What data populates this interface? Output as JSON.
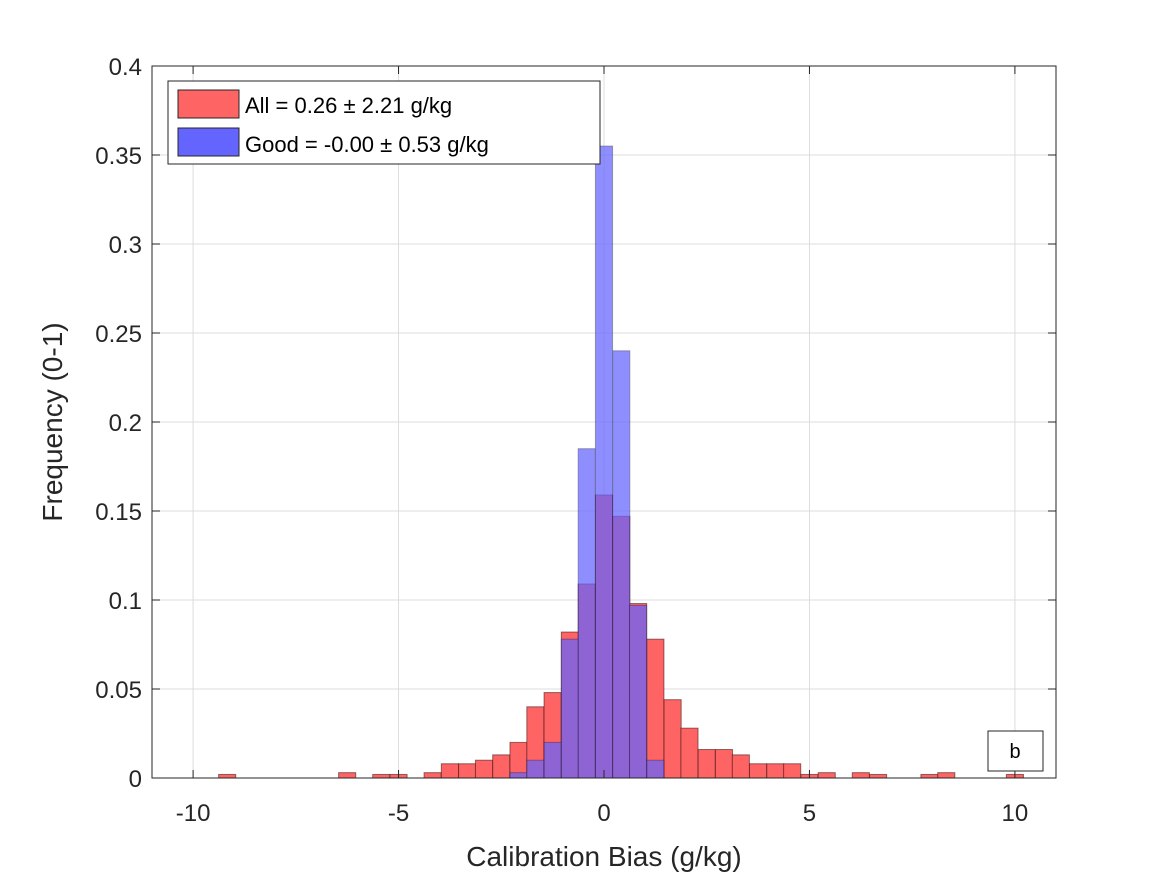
{
  "chart_data": {
    "type": "bar",
    "subtype": "overlaid-histogram",
    "xlabel": "Calibration Bias (g/kg)",
    "ylabel": "Frequency (0-1)",
    "xlim": [
      -11,
      11
    ],
    "ylim": [
      0,
      0.4
    ],
    "xticks": [
      -10,
      -5,
      0,
      5,
      10
    ],
    "xtick_labels": [
      "-10",
      "-5",
      "0",
      "5",
      "10"
    ],
    "yticks": [
      0,
      0.05,
      0.1,
      0.15,
      0.2,
      0.25,
      0.3,
      0.35,
      0.4
    ],
    "ytick_labels": [
      "0",
      "0.05",
      "0.1",
      "0.15",
      "0.2",
      "0.25",
      "0.3",
      "0.35",
      "0.4"
    ],
    "grid": true,
    "legend_position": "top-left",
    "panel_label": "b",
    "bin_width": 0.4167,
    "series": [
      {
        "name": "All = 0.26 ± 2.21 g/kg",
        "color": "#ff6464",
        "bins": [
          {
            "x": -9.17,
            "value": 0.002
          },
          {
            "x": -6.25,
            "value": 0.003
          },
          {
            "x": -5.42,
            "value": 0.002
          },
          {
            "x": -5.0,
            "value": 0.002
          },
          {
            "x": -4.17,
            "value": 0.003
          },
          {
            "x": -3.75,
            "value": 0.008
          },
          {
            "x": -3.33,
            "value": 0.008
          },
          {
            "x": -2.92,
            "value": 0.01
          },
          {
            "x": -2.5,
            "value": 0.013
          },
          {
            "x": -2.08,
            "value": 0.02
          },
          {
            "x": -1.67,
            "value": 0.04
          },
          {
            "x": -1.25,
            "value": 0.048
          },
          {
            "x": -0.83,
            "value": 0.082
          },
          {
            "x": -0.42,
            "value": 0.109
          },
          {
            "x": 0.0,
            "value": 0.159
          },
          {
            "x": 0.42,
            "value": 0.147
          },
          {
            "x": 0.83,
            "value": 0.098
          },
          {
            "x": 1.25,
            "value": 0.078
          },
          {
            "x": 1.67,
            "value": 0.044
          },
          {
            "x": 2.08,
            "value": 0.028
          },
          {
            "x": 2.5,
            "value": 0.016
          },
          {
            "x": 2.92,
            "value": 0.016
          },
          {
            "x": 3.33,
            "value": 0.013
          },
          {
            "x": 3.75,
            "value": 0.008
          },
          {
            "x": 4.17,
            "value": 0.008
          },
          {
            "x": 4.58,
            "value": 0.008
          },
          {
            "x": 5.0,
            "value": 0.002
          },
          {
            "x": 5.42,
            "value": 0.003
          },
          {
            "x": 6.25,
            "value": 0.003
          },
          {
            "x": 6.67,
            "value": 0.002
          },
          {
            "x": 7.92,
            "value": 0.002
          },
          {
            "x": 8.33,
            "value": 0.003
          },
          {
            "x": 10.0,
            "value": 0.002
          }
        ]
      },
      {
        "name": "Good = -0.00 ± 0.53 g/kg",
        "color": "#6464ff",
        "bins": [
          {
            "x": -2.08,
            "value": 0.003
          },
          {
            "x": -1.67,
            "value": 0.01
          },
          {
            "x": -1.25,
            "value": 0.02
          },
          {
            "x": -0.83,
            "value": 0.078
          },
          {
            "x": -0.42,
            "value": 0.185
          },
          {
            "x": 0.0,
            "value": 0.355
          },
          {
            "x": 0.42,
            "value": 0.24
          },
          {
            "x": 0.83,
            "value": 0.097
          },
          {
            "x": 1.25,
            "value": 0.01
          }
        ]
      }
    ]
  }
}
